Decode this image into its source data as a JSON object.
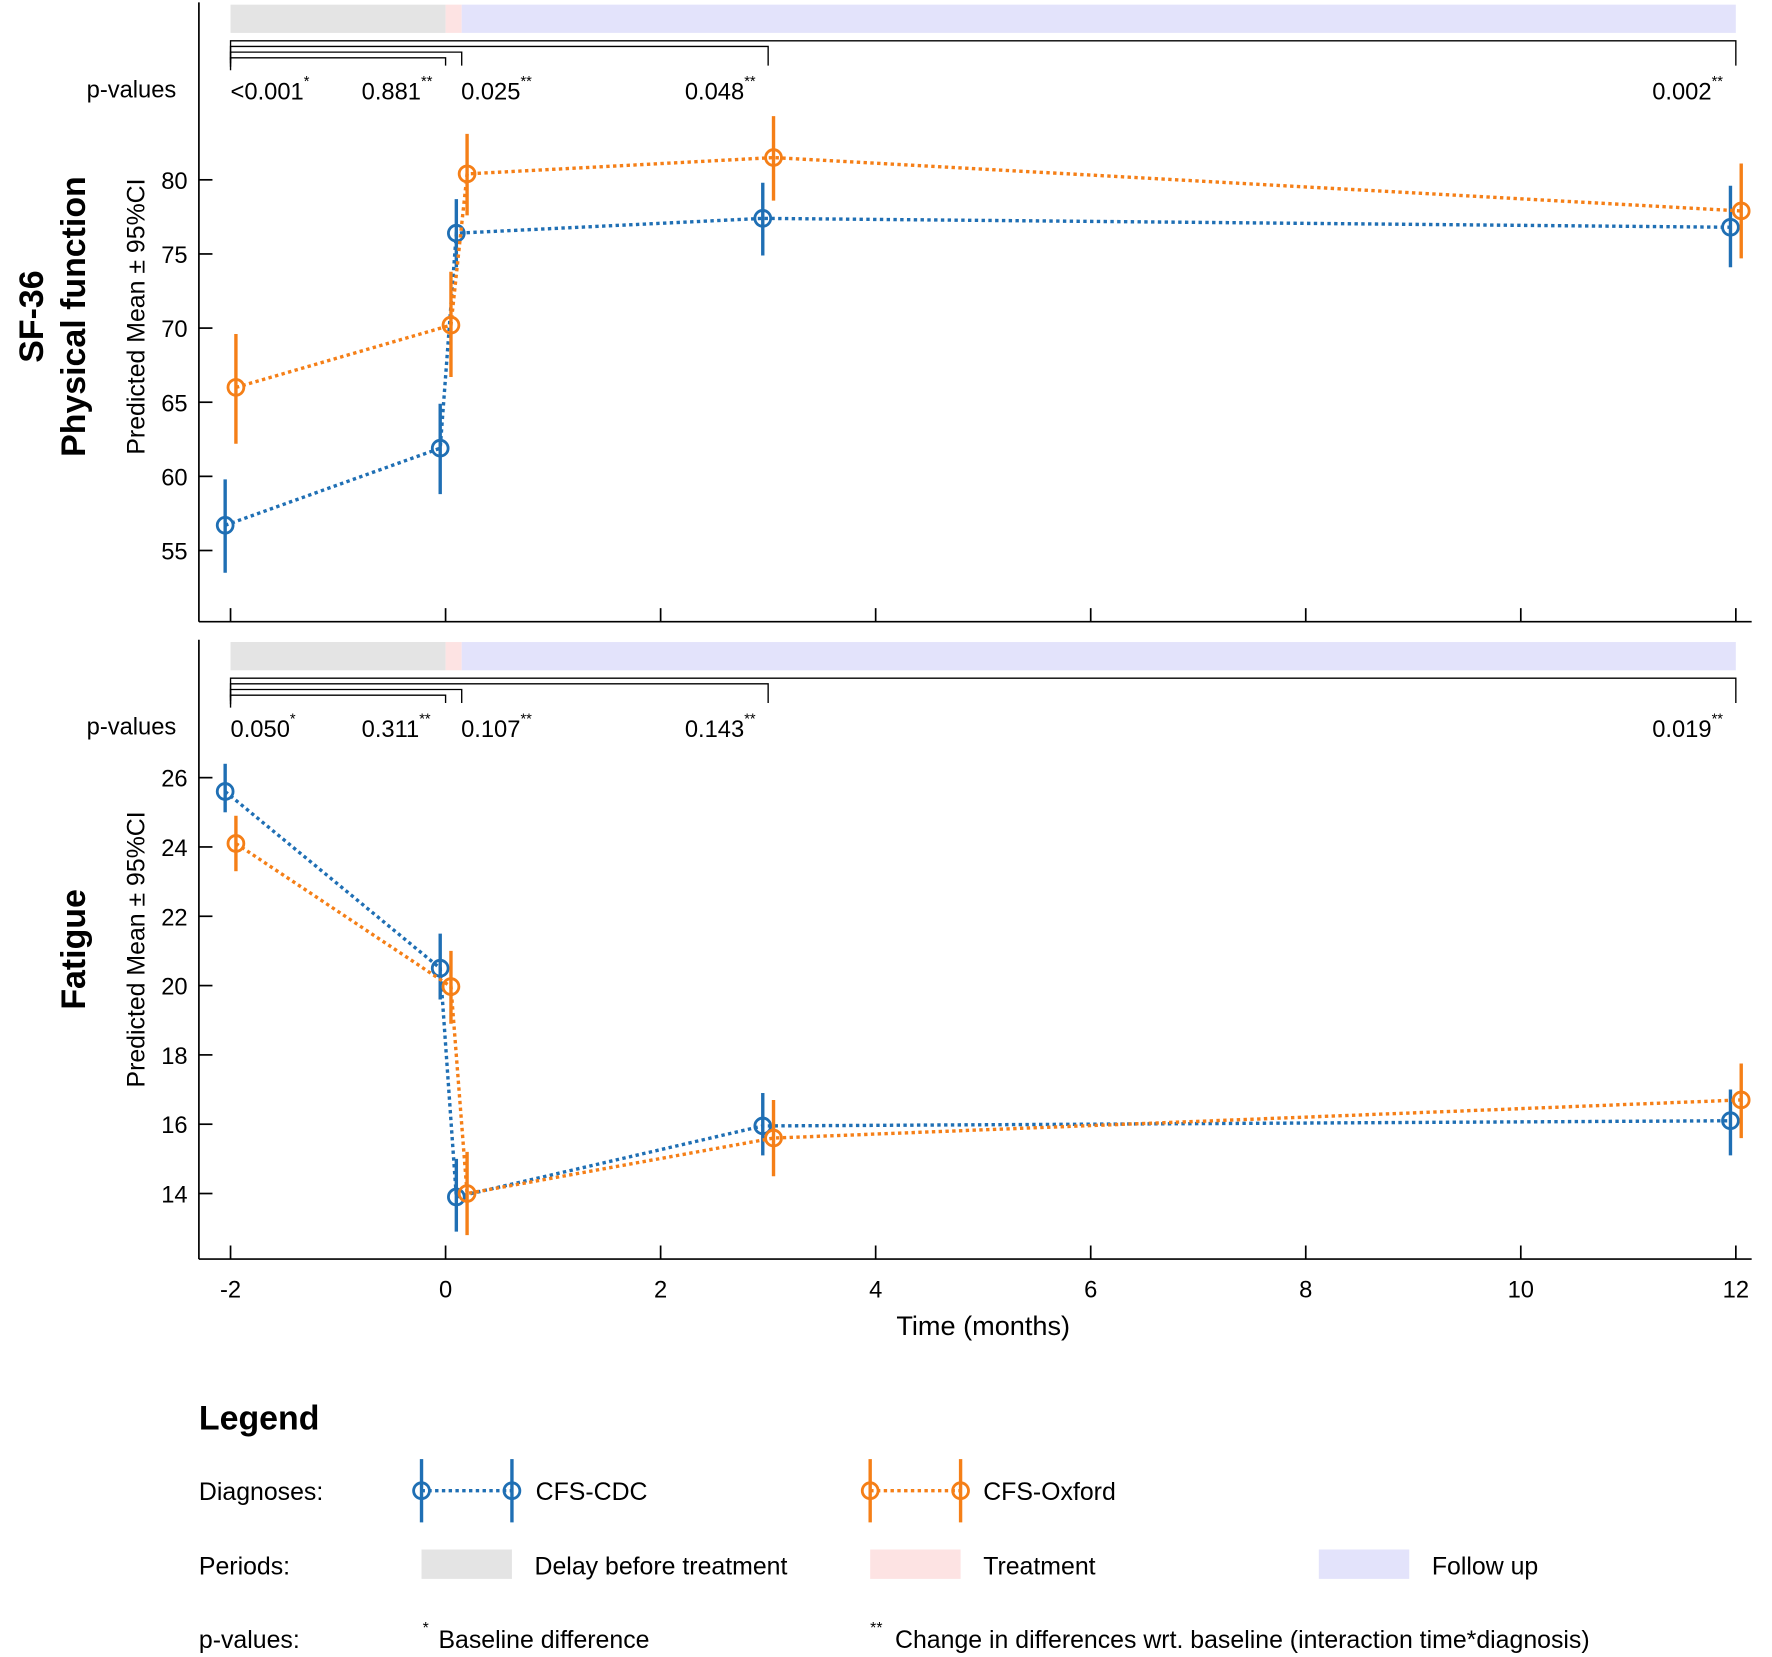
{
  "chart_data": [
    {
      "type": "line",
      "panel_title": "SF-36",
      "panel_subtitle": "Physical function",
      "ylabel": "Predicted Mean ± 95%CI",
      "ylim": [
        50,
        85
      ],
      "yticks": [
        55,
        60,
        65,
        70,
        75,
        80
      ],
      "pvalues_label": "p-values",
      "pvalues": [
        {
          "text": "<0.001",
          "mark": "*",
          "to": 0
        },
        {
          "text": "0.881",
          "mark": "**",
          "to": 0
        },
        {
          "text": "0.025",
          "mark": "**",
          "to": 0.15
        },
        {
          "text": "0.048",
          "mark": "**",
          "to": 3
        },
        {
          "text": "0.002",
          "mark": "**",
          "to": 12
        }
      ],
      "series": [
        {
          "name": "CFS-CDC",
          "color": "#1f6fb4",
          "x": [
            -2.05,
            -0.05,
            0.1,
            2.95,
            11.95
          ],
          "y": [
            56.7,
            61.9,
            76.4,
            77.4,
            76.8
          ],
          "lo": [
            53.5,
            58.8,
            74.1,
            74.9,
            74.1
          ],
          "hi": [
            59.8,
            64.9,
            78.7,
            79.8,
            79.6
          ]
        },
        {
          "name": "CFS-Oxford",
          "color": "#f57f17",
          "x": [
            -1.95,
            0.05,
            0.2,
            3.05,
            12.05
          ],
          "y": [
            66.0,
            70.2,
            80.4,
            81.5,
            77.9
          ],
          "lo": [
            62.2,
            66.7,
            77.6,
            78.6,
            74.7
          ],
          "hi": [
            69.6,
            73.8,
            83.1,
            84.3,
            81.1
          ]
        }
      ]
    },
    {
      "type": "line",
      "panel_title": "",
      "panel_subtitle": "Fatigue",
      "ylabel": "Predicted Mean ± 95%CI",
      "ylim": [
        12.2,
        28.1
      ],
      "yticks": [
        14,
        16,
        18,
        20,
        22,
        24,
        26
      ],
      "pvalues_label": "p-values",
      "pvalues": [
        {
          "text": "0.050",
          "mark": "*",
          "to": 0
        },
        {
          "text": "0.311",
          "mark": "**",
          "to": 0
        },
        {
          "text": "0.107",
          "mark": "**",
          "to": 0.15
        },
        {
          "text": "0.143",
          "mark": "**",
          "to": 3
        },
        {
          "text": "0.019",
          "mark": "**",
          "to": 12
        }
      ],
      "series": [
        {
          "name": "CFS-CDC",
          "color": "#1f6fb4",
          "x": [
            -2.05,
            -0.05,
            0.1,
            2.95,
            11.95
          ],
          "y": [
            25.6,
            20.5,
            13.9,
            15.95,
            16.1
          ],
          "lo": [
            25.0,
            19.6,
            12.9,
            15.1,
            15.1
          ],
          "hi": [
            26.4,
            21.5,
            15.0,
            16.9,
            17.0
          ]
        },
        {
          "name": "CFS-Oxford",
          "color": "#f57f17",
          "x": [
            -1.95,
            0.05,
            0.2,
            3.05,
            12.05
          ],
          "y": [
            24.1,
            19.97,
            14.0,
            15.6,
            16.7
          ],
          "lo": [
            23.3,
            18.9,
            12.8,
            14.5,
            15.6
          ],
          "hi": [
            24.9,
            21.0,
            15.2,
            16.7,
            17.75
          ]
        }
      ]
    }
  ],
  "xaxis": {
    "label": "Time (months)",
    "ticks": [
      -2,
      0,
      2,
      4,
      6,
      8,
      10,
      12
    ],
    "xlim": [
      -2.3,
      12.3
    ]
  },
  "periods": [
    {
      "name": "Delay before treatment",
      "from": -2,
      "to": 0,
      "color": "#e4e4e4"
    },
    {
      "name": "Treatment",
      "from": 0,
      "to": 0.15,
      "color": "#fde3e3"
    },
    {
      "name": "Follow up",
      "from": 0.15,
      "to": 12,
      "color": "#e3e3fb"
    }
  ],
  "legend": {
    "title": "Legend",
    "diagnoses_label": "Diagnoses:",
    "periods_label": "Periods:",
    "pvalues_label": "p-values:",
    "single_star": "*",
    "single_star_text": "Baseline difference",
    "double_star": "**",
    "double_star_text": "Change in differences wrt. baseline (interaction time*diagnosis)"
  }
}
